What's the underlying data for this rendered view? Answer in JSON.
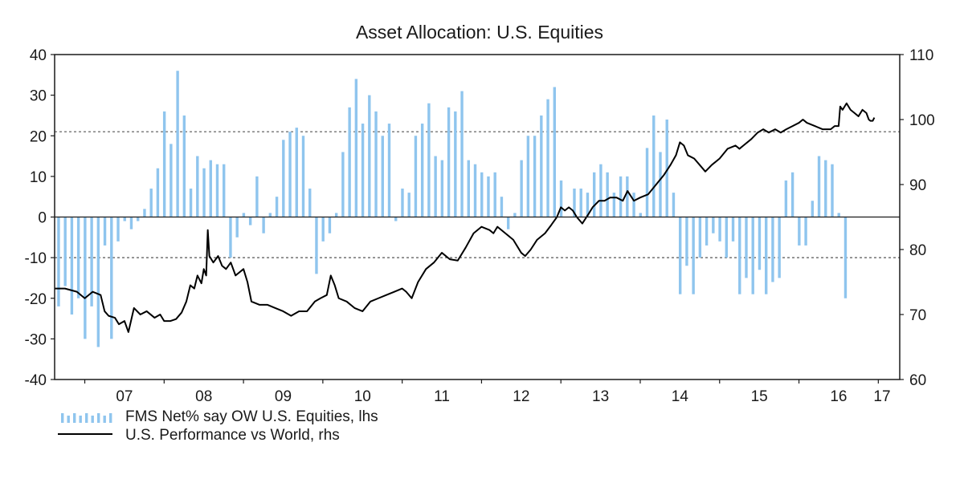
{
  "chart_data": {
    "type": "bar+line",
    "title": "Asset Allocation: U.S. Equities",
    "x_tick_labels": [
      "07",
      "08",
      "09",
      "10",
      "11",
      "12",
      "13",
      "14",
      "15",
      "16",
      "17"
    ],
    "x_range": [
      2006.62,
      2017.27
    ],
    "y_left": {
      "range": [
        -40,
        40
      ],
      "ticks": [
        40,
        30,
        20,
        10,
        0,
        -10,
        -20,
        -30,
        -40
      ]
    },
    "y_right": {
      "range": [
        60,
        110
      ],
      "ticks": [
        110,
        100,
        90,
        80,
        70,
        60
      ]
    },
    "reference_lines_left": [
      21,
      -10
    ],
    "series": [
      {
        "name": "FMS Net% say OW U.S. Equities, lhs",
        "type": "bar",
        "axis": "left",
        "color": "#8fc5ee",
        "start": 2006.67,
        "step": 0.08333,
        "values": [
          -22,
          -17,
          -24,
          -20,
          -30,
          -22,
          -32,
          -7,
          -30,
          -6,
          -1,
          -3,
          -1,
          2,
          7,
          12,
          26,
          18,
          36,
          25,
          7,
          15,
          12,
          14,
          13,
          13,
          -10,
          -5,
          1,
          -2,
          10,
          -4,
          1,
          5,
          19,
          21,
          22,
          20,
          7,
          -14,
          -6,
          -4,
          1,
          16,
          27,
          34,
          23,
          30,
          26,
          20,
          23,
          -1,
          7,
          6,
          20,
          23,
          28,
          15,
          14,
          27,
          26,
          31,
          14,
          13,
          11,
          10,
          11,
          5,
          -3,
          1,
          14,
          20,
          20,
          25,
          29,
          32,
          9,
          0,
          7,
          7,
          6,
          11,
          13,
          11,
          6,
          10,
          10,
          6,
          1,
          17,
          25,
          16,
          24,
          6,
          -19,
          -12,
          -19,
          -10,
          -7,
          -4,
          -6,
          -10,
          -6,
          -19,
          -15,
          -19,
          -13,
          -19,
          -16,
          -15,
          9,
          11,
          -7,
          -7,
          4,
          15,
          14,
          13,
          1,
          -20
        ]
      },
      {
        "name": "U.S. Performance vs World, rhs",
        "type": "line",
        "axis": "right",
        "color": "#000000",
        "points": [
          [
            2006.62,
            74
          ],
          [
            2006.75,
            74
          ],
          [
            2006.9,
            73.5
          ],
          [
            2007.0,
            72.5
          ],
          [
            2007.1,
            73.5
          ],
          [
            2007.2,
            73
          ],
          [
            2007.25,
            70.5
          ],
          [
            2007.3,
            69.8
          ],
          [
            2007.38,
            69.5
          ],
          [
            2007.43,
            68.5
          ],
          [
            2007.5,
            69
          ],
          [
            2007.55,
            67.3
          ],
          [
            2007.62,
            71
          ],
          [
            2007.7,
            70
          ],
          [
            2007.78,
            70.5
          ],
          [
            2007.88,
            69.5
          ],
          [
            2007.95,
            70
          ],
          [
            2008.0,
            69
          ],
          [
            2008.08,
            69
          ],
          [
            2008.15,
            69.3
          ],
          [
            2008.22,
            70.3
          ],
          [
            2008.28,
            72
          ],
          [
            2008.33,
            74.5
          ],
          [
            2008.38,
            74
          ],
          [
            2008.42,
            76
          ],
          [
            2008.47,
            74.8
          ],
          [
            2008.5,
            77
          ],
          [
            2008.53,
            76
          ],
          [
            2008.55,
            83
          ],
          [
            2008.57,
            79
          ],
          [
            2008.62,
            78
          ],
          [
            2008.68,
            79
          ],
          [
            2008.73,
            77.5
          ],
          [
            2008.78,
            77
          ],
          [
            2008.84,
            78
          ],
          [
            2008.9,
            76
          ],
          [
            2009.0,
            77
          ],
          [
            2009.05,
            75
          ],
          [
            2009.1,
            72
          ],
          [
            2009.2,
            71.5
          ],
          [
            2009.3,
            71.5
          ],
          [
            2009.4,
            71
          ],
          [
            2009.5,
            70.5
          ],
          [
            2009.6,
            69.8
          ],
          [
            2009.7,
            70.5
          ],
          [
            2009.8,
            70.5
          ],
          [
            2009.9,
            72
          ],
          [
            2009.97,
            72.5
          ],
          [
            2010.05,
            73
          ],
          [
            2010.1,
            76
          ],
          [
            2010.15,
            74.5
          ],
          [
            2010.2,
            72.5
          ],
          [
            2010.3,
            72
          ],
          [
            2010.4,
            71
          ],
          [
            2010.5,
            70.5
          ],
          [
            2010.6,
            72
          ],
          [
            2010.7,
            72.5
          ],
          [
            2010.8,
            73
          ],
          [
            2010.9,
            73.5
          ],
          [
            2011.0,
            74
          ],
          [
            2011.05,
            73.5
          ],
          [
            2011.12,
            72.5
          ],
          [
            2011.2,
            75
          ],
          [
            2011.3,
            77
          ],
          [
            2011.4,
            78
          ],
          [
            2011.5,
            79.5
          ],
          [
            2011.6,
            78.5
          ],
          [
            2011.7,
            78.3
          ],
          [
            2011.8,
            80.3
          ],
          [
            2011.9,
            82.5
          ],
          [
            2012.0,
            83.5
          ],
          [
            2012.1,
            83
          ],
          [
            2012.15,
            82.5
          ],
          [
            2012.2,
            83.5
          ],
          [
            2012.3,
            82.5
          ],
          [
            2012.4,
            81.5
          ],
          [
            2012.5,
            79.5
          ],
          [
            2012.55,
            79
          ],
          [
            2012.62,
            80
          ],
          [
            2012.7,
            81.5
          ],
          [
            2012.8,
            82.5
          ],
          [
            2012.88,
            83.8
          ],
          [
            2012.95,
            85
          ],
          [
            2013.0,
            86.5
          ],
          [
            2013.05,
            86
          ],
          [
            2013.1,
            86.5
          ],
          [
            2013.15,
            86
          ],
          [
            2013.2,
            85
          ],
          [
            2013.27,
            84
          ],
          [
            2013.35,
            85.5
          ],
          [
            2013.4,
            86.5
          ],
          [
            2013.48,
            87.5
          ],
          [
            2013.55,
            87.5
          ],
          [
            2013.62,
            88
          ],
          [
            2013.7,
            88
          ],
          [
            2013.78,
            87.5
          ],
          [
            2013.84,
            89
          ],
          [
            2013.92,
            87.5
          ],
          [
            2014.0,
            88
          ],
          [
            2014.1,
            88.5
          ],
          [
            2014.2,
            90
          ],
          [
            2014.3,
            91.5
          ],
          [
            2014.38,
            93
          ],
          [
            2014.45,
            94.5
          ],
          [
            2014.5,
            96.5
          ],
          [
            2014.55,
            96
          ],
          [
            2014.6,
            94.5
          ],
          [
            2014.68,
            94
          ],
          [
            2014.75,
            93
          ],
          [
            2014.82,
            92
          ],
          [
            2014.9,
            93
          ],
          [
            2015.0,
            94
          ],
          [
            2015.1,
            95.5
          ],
          [
            2015.2,
            96
          ],
          [
            2015.25,
            95.5
          ],
          [
            2015.3,
            96
          ],
          [
            2015.4,
            97
          ],
          [
            2015.48,
            98
          ],
          [
            2015.55,
            98.5
          ],
          [
            2015.62,
            98
          ],
          [
            2015.7,
            98.5
          ],
          [
            2015.77,
            98
          ],
          [
            2015.84,
            98.5
          ],
          [
            2015.92,
            99
          ],
          [
            2016.0,
            99.5
          ],
          [
            2016.05,
            100
          ],
          [
            2016.1,
            99.5
          ],
          [
            2016.2,
            99
          ],
          [
            2016.3,
            98.5
          ],
          [
            2016.4,
            98.5
          ],
          [
            2016.45,
            99
          ],
          [
            2016.5,
            99
          ],
          [
            2016.52,
            102
          ],
          [
            2016.55,
            101.5
          ],
          [
            2016.6,
            102.5
          ],
          [
            2016.65,
            101.5
          ],
          [
            2016.7,
            101
          ],
          [
            2016.75,
            100.5
          ],
          [
            2016.8,
            101.5
          ],
          [
            2016.85,
            101
          ],
          [
            2016.88,
            100
          ],
          [
            2016.9,
            99.8
          ],
          [
            2016.93,
            99.8
          ],
          [
            2016.95,
            100.3
          ]
        ]
      }
    ]
  }
}
